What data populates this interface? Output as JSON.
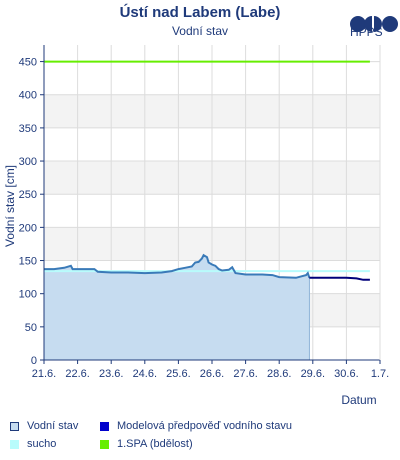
{
  "header": {
    "title": "Ústí nad Labem (Labe)",
    "subtitle": "Vodní stav",
    "logo_text": "HPPS",
    "logo_icon": "hpps-logo-icon"
  },
  "chart_data": {
    "type": "line",
    "ylabel": "Vodní stav [cm]",
    "xlabel": "Datum",
    "ylim": [
      0,
      475
    ],
    "y_ticks": [
      0,
      50,
      100,
      150,
      200,
      250,
      300,
      350,
      400,
      450
    ],
    "x_ticks": [
      "21.6.",
      "22.6.",
      "23.6.",
      "24.6.",
      "25.6.",
      "26.6.",
      "27.6.",
      "28.6.",
      "29.6.",
      "30.6.",
      "1.7."
    ],
    "xlim_days": [
      0,
      10
    ],
    "grid": true,
    "banded_background": true,
    "series": [
      {
        "name": "Vodní stav",
        "color": "#3a7ab8",
        "fill": "#c6dcf0",
        "points": [
          [
            0.0,
            137
          ],
          [
            0.3,
            137
          ],
          [
            0.6,
            139
          ],
          [
            0.8,
            142
          ],
          [
            0.85,
            137
          ],
          [
            1.0,
            137
          ],
          [
            1.5,
            137
          ],
          [
            1.6,
            133
          ],
          [
            2.0,
            132
          ],
          [
            2.5,
            132
          ],
          [
            3.0,
            131
          ],
          [
            3.5,
            132
          ],
          [
            3.8,
            134
          ],
          [
            4.0,
            137
          ],
          [
            4.2,
            139
          ],
          [
            4.4,
            141
          ],
          [
            4.5,
            147
          ],
          [
            4.6,
            148
          ],
          [
            4.7,
            153
          ],
          [
            4.75,
            158
          ],
          [
            4.85,
            155
          ],
          [
            4.9,
            147
          ],
          [
            5.0,
            144
          ],
          [
            5.1,
            142
          ],
          [
            5.2,
            137
          ],
          [
            5.3,
            135
          ],
          [
            5.5,
            136
          ],
          [
            5.6,
            140
          ],
          [
            5.7,
            131
          ],
          [
            6.0,
            129
          ],
          [
            6.5,
            129
          ],
          [
            6.8,
            128
          ],
          [
            7.0,
            125
          ],
          [
            7.5,
            124
          ],
          [
            7.8,
            128
          ],
          [
            7.85,
            131
          ],
          [
            7.9,
            124
          ]
        ]
      },
      {
        "name": "Modelová předpověď vodního stavu",
        "color": "#00007a",
        "points": [
          [
            7.9,
            124
          ],
          [
            8.3,
            124
          ],
          [
            9.0,
            124
          ],
          [
            9.3,
            123
          ],
          [
            9.5,
            121
          ],
          [
            9.7,
            121
          ]
        ]
      },
      {
        "name": "sucho",
        "color": "#b8fcfc",
        "points": [
          [
            0.0,
            134
          ],
          [
            9.7,
            134
          ]
        ]
      },
      {
        "name": "1.SPA (bdělost)",
        "color": "#66ee00",
        "points": [
          [
            0.0,
            450
          ],
          [
            9.7,
            450
          ]
        ]
      }
    ]
  },
  "legend": [
    {
      "label": "Vodní stav",
      "color": "#c6dcf0",
      "border": "#1f3a7a"
    },
    {
      "label": "Modelová předpověď vodního stavu",
      "color": "#0000cc",
      "border": "#0000cc"
    },
    {
      "label": "sucho",
      "color": "#b8fcfc",
      "border": "#b8fcfc"
    },
    {
      "label": "1.SPA (bdělost)",
      "color": "#66ee00",
      "border": "#66ee00"
    }
  ]
}
